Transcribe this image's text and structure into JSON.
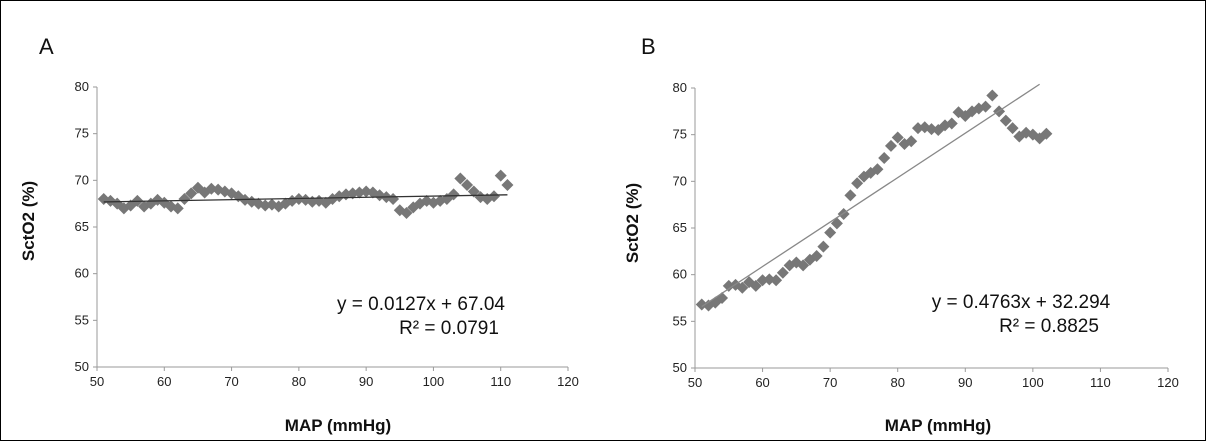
{
  "chart_data": [
    {
      "type": "scatter",
      "panel_label": "A",
      "xlabel": "MAP (mmHg)",
      "ylabel": "SctO2 (%)",
      "xlim": [
        50,
        120
      ],
      "ylim": [
        50,
        80
      ],
      "x_ticks": [
        "50",
        "60",
        "70",
        "80",
        "90",
        "100",
        "110",
        "120"
      ],
      "y_ticks": [
        "50",
        "55",
        "60",
        "65",
        "70",
        "75",
        "80"
      ],
      "grid": false,
      "marker": "diamond",
      "marker_color": "#777777",
      "trendline": {
        "slope": 0.0127,
        "intercept": 67.04,
        "x_range": [
          51,
          111
        ],
        "color": "#333333"
      },
      "equation": "y = 0.0127x + 67.04",
      "r_squared": "R² = 0.0791",
      "points": [
        [
          51,
          68
        ],
        [
          52,
          67.8
        ],
        [
          53,
          67.5
        ],
        [
          54,
          67
        ],
        [
          55,
          67.3
        ],
        [
          56,
          67.8
        ],
        [
          57,
          67.2
        ],
        [
          58,
          67.5
        ],
        [
          59,
          67.9
        ],
        [
          60,
          67.6
        ],
        [
          61,
          67.2
        ],
        [
          62,
          67
        ],
        [
          63,
          68
        ],
        [
          64,
          68.6
        ],
        [
          65,
          69.2
        ],
        [
          66,
          68.7
        ],
        [
          67,
          69.1
        ],
        [
          68,
          69
        ],
        [
          69,
          68.8
        ],
        [
          70,
          68.6
        ],
        [
          71,
          68.3
        ],
        [
          72,
          67.9
        ],
        [
          73,
          67.7
        ],
        [
          74,
          67.5
        ],
        [
          75,
          67.3
        ],
        [
          76,
          67.4
        ],
        [
          77,
          67.2
        ],
        [
          78,
          67.5
        ],
        [
          79,
          67.8
        ],
        [
          80,
          68
        ],
        [
          81,
          67.9
        ],
        [
          82,
          67.7
        ],
        [
          83,
          67.8
        ],
        [
          84,
          67.6
        ],
        [
          85,
          68
        ],
        [
          86,
          68.3
        ],
        [
          87,
          68.5
        ],
        [
          88,
          68.6
        ],
        [
          89,
          68.7
        ],
        [
          90,
          68.8
        ],
        [
          91,
          68.7
        ],
        [
          92,
          68.4
        ],
        [
          93,
          68.2
        ],
        [
          94,
          68
        ],
        [
          95,
          66.8
        ],
        [
          96,
          66.5
        ],
        [
          97,
          67.1
        ],
        [
          98,
          67.5
        ],
        [
          99,
          67.8
        ],
        [
          100,
          67.6
        ],
        [
          101,
          67.8
        ],
        [
          102,
          68
        ],
        [
          103,
          68.5
        ],
        [
          104,
          70.2
        ],
        [
          105,
          69.5
        ],
        [
          106,
          68.8
        ],
        [
          107,
          68.2
        ],
        [
          108,
          68
        ],
        [
          109,
          68.3
        ],
        [
          110,
          70.5
        ],
        [
          111,
          69.5
        ]
      ]
    },
    {
      "type": "scatter",
      "panel_label": "B",
      "xlabel": "MAP (mmHg)",
      "ylabel": "SctO2 (%)",
      "xlim": [
        50,
        120
      ],
      "ylim": [
        50,
        80
      ],
      "x_ticks": [
        "50",
        "60",
        "70",
        "80",
        "90",
        "100",
        "110",
        "120"
      ],
      "y_ticks": [
        "50",
        "55",
        "60",
        "65",
        "70",
        "75",
        "80"
      ],
      "grid": false,
      "marker": "diamond",
      "marker_color": "#777777",
      "trendline": {
        "slope": 0.4763,
        "intercept": 32.294,
        "x_range": [
          51,
          101
        ],
        "color": "#888888"
      },
      "equation": "y = 0.4763x + 32.294",
      "r_squared": "R² = 0.8825",
      "points": [
        [
          51,
          56.8
        ],
        [
          52,
          56.7
        ],
        [
          53,
          57
        ],
        [
          54,
          57.5
        ],
        [
          55,
          58.8
        ],
        [
          56,
          58.9
        ],
        [
          57,
          58.6
        ],
        [
          58,
          59.2
        ],
        [
          59,
          58.8
        ],
        [
          60,
          59.4
        ],
        [
          61,
          59.5
        ],
        [
          62,
          59.4
        ],
        [
          63,
          60.2
        ],
        [
          64,
          61
        ],
        [
          65,
          61.3
        ],
        [
          66,
          61
        ],
        [
          67,
          61.6
        ],
        [
          68,
          62
        ],
        [
          69,
          63
        ],
        [
          70,
          64.5
        ],
        [
          71,
          65.5
        ],
        [
          72,
          66.5
        ],
        [
          73,
          68.5
        ],
        [
          74,
          69.8
        ],
        [
          75,
          70.5
        ],
        [
          76,
          70.9
        ],
        [
          77,
          71.3
        ],
        [
          78,
          72.5
        ],
        [
          79,
          73.8
        ],
        [
          80,
          74.7
        ],
        [
          81,
          74
        ],
        [
          82,
          74.3
        ],
        [
          83,
          75.7
        ],
        [
          84,
          75.8
        ],
        [
          85,
          75.6
        ],
        [
          86,
          75.5
        ],
        [
          87,
          76
        ],
        [
          88,
          76.2
        ],
        [
          89,
          77.4
        ],
        [
          90,
          77
        ],
        [
          91,
          77.5
        ],
        [
          92,
          77.8
        ],
        [
          93,
          78
        ],
        [
          94,
          79.2
        ],
        [
          95,
          77.5
        ],
        [
          96,
          76.5
        ],
        [
          97,
          75.7
        ],
        [
          98,
          74.8
        ],
        [
          99,
          75.2
        ],
        [
          100,
          75
        ],
        [
          101,
          74.6
        ],
        [
          102,
          75.1
        ]
      ]
    }
  ]
}
